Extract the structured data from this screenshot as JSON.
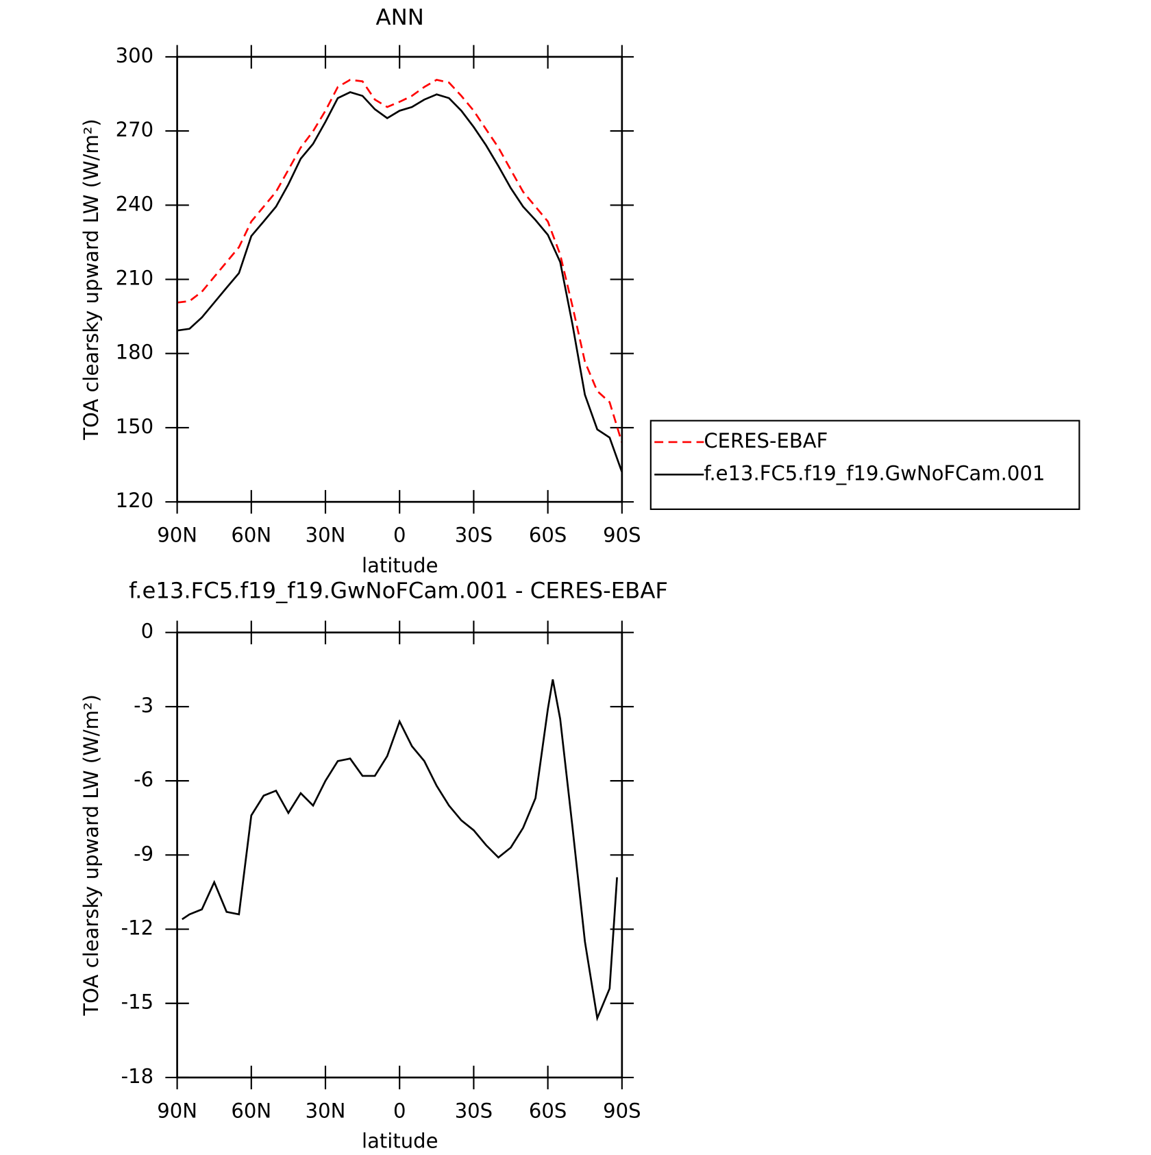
{
  "chart_data": [
    {
      "type": "line",
      "title": "ANN",
      "xlabel": "latitude",
      "ylabel": "TOA clearsky upward LW (W/m²)",
      "x": [
        90,
        85,
        80,
        75,
        70,
        65,
        60,
        55,
        50,
        45,
        40,
        35,
        30,
        25,
        20,
        15,
        10,
        5,
        0,
        -5,
        -10,
        -15,
        -20,
        -25,
        -30,
        -35,
        -40,
        -45,
        -50,
        -55,
        -60,
        -65,
        -70,
        -75,
        -80,
        -85,
        -90
      ],
      "xlim": [
        90,
        -90
      ],
      "xticks": [
        {
          "value": 90,
          "label": "90N"
        },
        {
          "value": 60,
          "label": "60N"
        },
        {
          "value": 30,
          "label": "30N"
        },
        0,
        {
          "value": -30,
          "label": "30S"
        },
        {
          "value": -60,
          "label": "60S"
        },
        {
          "value": -90,
          "label": "90S"
        }
      ],
      "ylim": [
        120,
        300
      ],
      "yticks": [
        120,
        150,
        180,
        210,
        240,
        270,
        300
      ],
      "legend": "right",
      "series": [
        {
          "name": "CERES-EBAF",
          "color": "#ff0000",
          "dashed": true,
          "values": [
            200.6,
            201.2,
            205,
            211,
            217,
            223,
            233.4,
            239.4,
            245.4,
            254.3,
            263.3,
            269.9,
            278.2,
            287.8,
            290.7,
            290.1,
            282.7,
            279.7,
            281.8,
            284.2,
            287.8,
            290.7,
            289.6,
            284.2,
            278.2,
            270.7,
            263.3,
            254.3,
            245.4,
            239.4,
            233.4,
            220,
            199,
            176.7,
            164.8,
            160.3,
            143.9
          ]
        },
        {
          "name": "f.e13.FC5.f19_f19.GwNoFCam.001",
          "color": "#000000",
          "dashed": false,
          "values": [
            189.3,
            190,
            194.6,
            200.6,
            206.6,
            212.5,
            227.5,
            233.4,
            239.4,
            248.4,
            258.8,
            264.8,
            273.7,
            283.3,
            285.7,
            284.2,
            278.8,
            275.2,
            278.2,
            279.7,
            282.7,
            284.8,
            283.3,
            278.2,
            271.6,
            264.2,
            255.8,
            246.9,
            239.4,
            234,
            228,
            217,
            191.6,
            163.3,
            149.3,
            146,
            132
          ]
        }
      ]
    },
    {
      "type": "line",
      "title": "f.e13.FC5.f19_f19.GwNoFCam.001 - CERES-EBAF",
      "xlabel": "latitude",
      "ylabel": "TOA clearsky upward LW (W/m²)",
      "x": [
        88,
        85,
        80,
        75,
        70,
        65,
        60,
        55,
        50,
        45,
        40,
        35,
        30,
        25,
        20,
        15,
        10,
        5,
        0,
        -5,
        -10,
        -15,
        -20,
        -25,
        -30,
        -35,
        -40,
        -45,
        -50,
        -55,
        -60,
        -62,
        -65,
        -70,
        -75,
        -80,
        -85,
        -88
      ],
      "xlim": [
        90,
        -90
      ],
      "xticks": [
        {
          "value": 90,
          "label": "90N"
        },
        {
          "value": 60,
          "label": "60N"
        },
        {
          "value": 30,
          "label": "30N"
        },
        0,
        {
          "value": -30,
          "label": "30S"
        },
        {
          "value": -60,
          "label": "60S"
        },
        {
          "value": -90,
          "label": "90S"
        }
      ],
      "ylim": [
        -18,
        0
      ],
      "yticks": [
        -18,
        -15,
        -12,
        -9,
        -6,
        -3,
        0
      ],
      "series": [
        {
          "color": "#000000",
          "dashed": false,
          "values": [
            -11.6,
            -11.4,
            -11.2,
            -10.1,
            -11.3,
            -11.4,
            -7.4,
            -6.6,
            -6.4,
            -7.3,
            -6.5,
            -7.0,
            -6.0,
            -5.2,
            -5.1,
            -5.8,
            -5.8,
            -5.0,
            -3.6,
            -4.6,
            -5.2,
            -6.2,
            -7.0,
            -7.6,
            -8.0,
            -8.6,
            -9.1,
            -8.7,
            -7.9,
            -6.7,
            -3.1,
            -1.9,
            -3.5,
            -7.9,
            -12.5,
            -15.6,
            -14.4,
            -9.9
          ]
        }
      ]
    }
  ]
}
